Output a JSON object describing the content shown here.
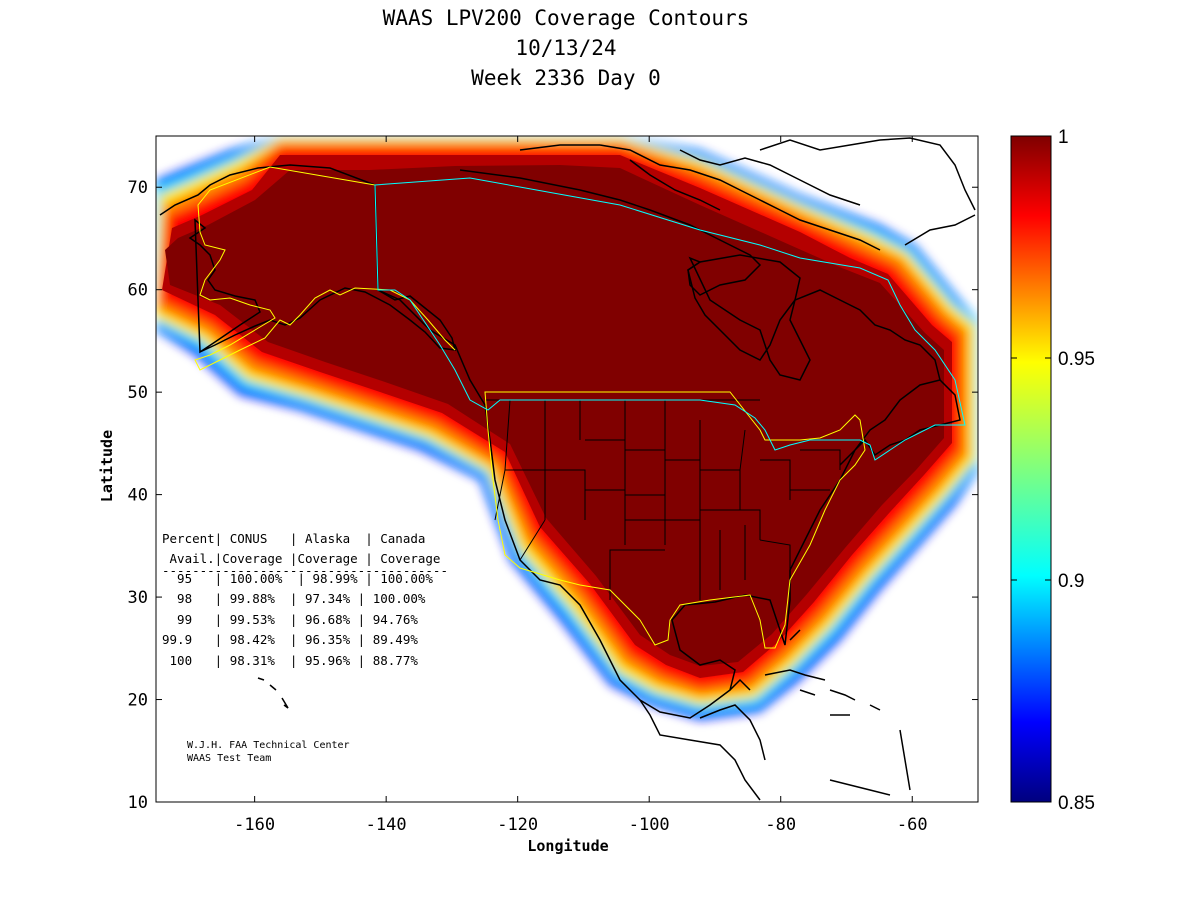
{
  "title": {
    "line1": "WAAS LPV200 Coverage Contours",
    "line2": "10/13/24",
    "line3": "Week 2336 Day 0"
  },
  "axes": {
    "xlabel": "Longitude",
    "ylabel": "Latitude",
    "x_ticks": [
      "-160",
      "-140",
      "-120",
      "-100",
      "-80",
      "-60"
    ],
    "y_ticks": [
      "10",
      "20",
      "30",
      "40",
      "50",
      "60",
      "70"
    ],
    "xlim": [
      -175,
      -50
    ],
    "ylim": [
      10,
      75
    ]
  },
  "colorbar": {
    "ticks": [
      "0.85",
      "0.9",
      "0.95",
      "1"
    ],
    "range": [
      0.85,
      1
    ],
    "colormap": "jet"
  },
  "table": {
    "header1": "Percent| CONUS   | Alaska  | Canada",
    "header2": " Avail.|Coverage |Coverage | Coverage",
    "divider": "--------------------------------------",
    "rows": [
      "  95   | 100.00%  | 98.99% | 100.00%",
      "  98   | 99.88%  | 97.34% | 100.00%",
      "  99   | 99.53%  | 96.68% | 94.76%",
      "99.9   | 98.42%  | 96.35% | 89.49%",
      " 100   | 98.31%  | 95.96% | 88.77%"
    ]
  },
  "credit": {
    "line1": "W.J.H. FAA Technical Center",
    "line2": "WAAS Test Team"
  },
  "colors": {
    "dark_red": "#800000",
    "red": "#ff0000",
    "service_boundary": "#ffff00",
    "canada_boundary": "#00ffff"
  }
}
